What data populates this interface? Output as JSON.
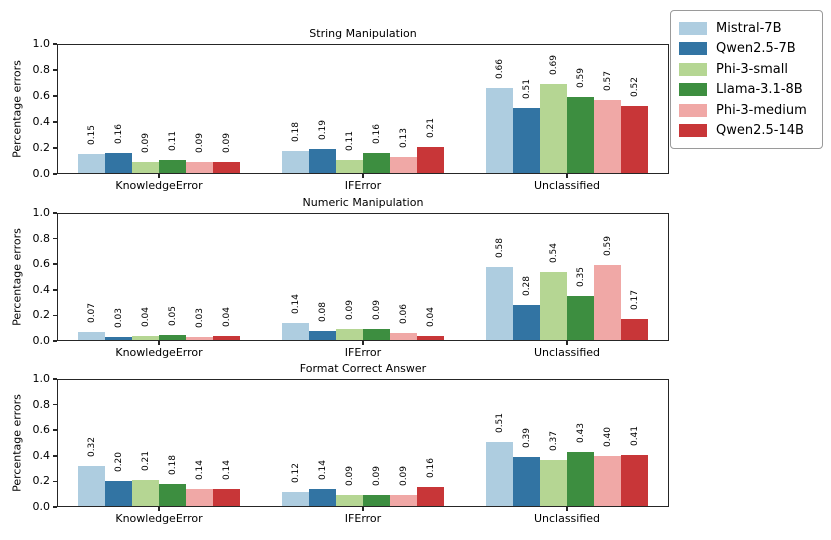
{
  "figure": {
    "background": "#ffffff",
    "spine_color": "#262626",
    "text_color": "#000000"
  },
  "legend": {
    "position": "top-right-outside",
    "items": [
      {
        "label": "Mistral-7B",
        "color": "#aecde0"
      },
      {
        "label": "Qwen2.5-7B",
        "color": "#3274a3"
      },
      {
        "label": "Phi-3-small",
        "color": "#b5d693"
      },
      {
        "label": "Llama-3.1-8B",
        "color": "#3d8e40"
      },
      {
        "label": "Phi-3-medium",
        "color": "#f0a8a6"
      },
      {
        "label": "Qwen2.5-14B",
        "color": "#c83638"
      }
    ]
  },
  "chart_data": [
    {
      "type": "bar",
      "title": "String Manipulation",
      "ylabel": "Percentage errors",
      "categories": [
        "KnowledgeError",
        "IFError",
        "Unclassified"
      ],
      "ylim": [
        0.0,
        1.0
      ],
      "ytick_labels": [
        "0.0",
        "0.2",
        "0.4",
        "0.6",
        "0.8",
        "1.0"
      ],
      "grid": false,
      "bar_value_labels": true,
      "series": [
        {
          "name": "Mistral-7B",
          "values": [
            0.15,
            0.18,
            0.66
          ]
        },
        {
          "name": "Qwen2.5-7B",
          "values": [
            0.16,
            0.19,
            0.51
          ]
        },
        {
          "name": "Phi-3-small",
          "values": [
            0.09,
            0.11,
            0.69
          ]
        },
        {
          "name": "Llama-3.1-8B",
          "values": [
            0.11,
            0.16,
            0.59
          ]
        },
        {
          "name": "Phi-3-medium",
          "values": [
            0.09,
            0.13,
            0.57
          ]
        },
        {
          "name": "Qwen2.5-14B",
          "values": [
            0.09,
            0.21,
            0.52
          ]
        }
      ]
    },
    {
      "type": "bar",
      "title": "Numeric Manipulation",
      "ylabel": "Percentage errors",
      "categories": [
        "KnowledgeError",
        "IFError",
        "Unclassified"
      ],
      "ylim": [
        0.0,
        1.0
      ],
      "ytick_labels": [
        "0.0",
        "0.2",
        "0.4",
        "0.6",
        "0.8",
        "1.0"
      ],
      "grid": false,
      "bar_value_labels": true,
      "series": [
        {
          "name": "Mistral-7B",
          "values": [
            0.07,
            0.14,
            0.58
          ]
        },
        {
          "name": "Qwen2.5-7B",
          "values": [
            0.03,
            0.08,
            0.28
          ]
        },
        {
          "name": "Phi-3-small",
          "values": [
            0.04,
            0.09,
            0.54
          ]
        },
        {
          "name": "Llama-3.1-8B",
          "values": [
            0.05,
            0.09,
            0.35
          ]
        },
        {
          "name": "Phi-3-medium",
          "values": [
            0.03,
            0.06,
            0.59
          ]
        },
        {
          "name": "Qwen2.5-14B",
          "values": [
            0.04,
            0.04,
            0.17
          ]
        }
      ]
    },
    {
      "type": "bar",
      "title": "Format Correct Answer",
      "ylabel": "Percentage errors",
      "categories": [
        "KnowledgeError",
        "IFError",
        "Unclassified"
      ],
      "ylim": [
        0.0,
        1.0
      ],
      "ytick_labels": [
        "0.0",
        "0.2",
        "0.4",
        "0.6",
        "0.8",
        "1.0"
      ],
      "grid": false,
      "bar_value_labels": true,
      "series": [
        {
          "name": "Mistral-7B",
          "values": [
            0.32,
            0.12,
            0.51
          ]
        },
        {
          "name": "Qwen2.5-7B",
          "values": [
            0.2,
            0.14,
            0.39
          ]
        },
        {
          "name": "Phi-3-small",
          "values": [
            0.21,
            0.09,
            0.37
          ]
        },
        {
          "name": "Llama-3.1-8B",
          "values": [
            0.18,
            0.09,
            0.43
          ]
        },
        {
          "name": "Phi-3-medium",
          "values": [
            0.14,
            0.09,
            0.4
          ]
        },
        {
          "name": "Qwen2.5-14B",
          "values": [
            0.14,
            0.16,
            0.41
          ]
        }
      ]
    }
  ]
}
